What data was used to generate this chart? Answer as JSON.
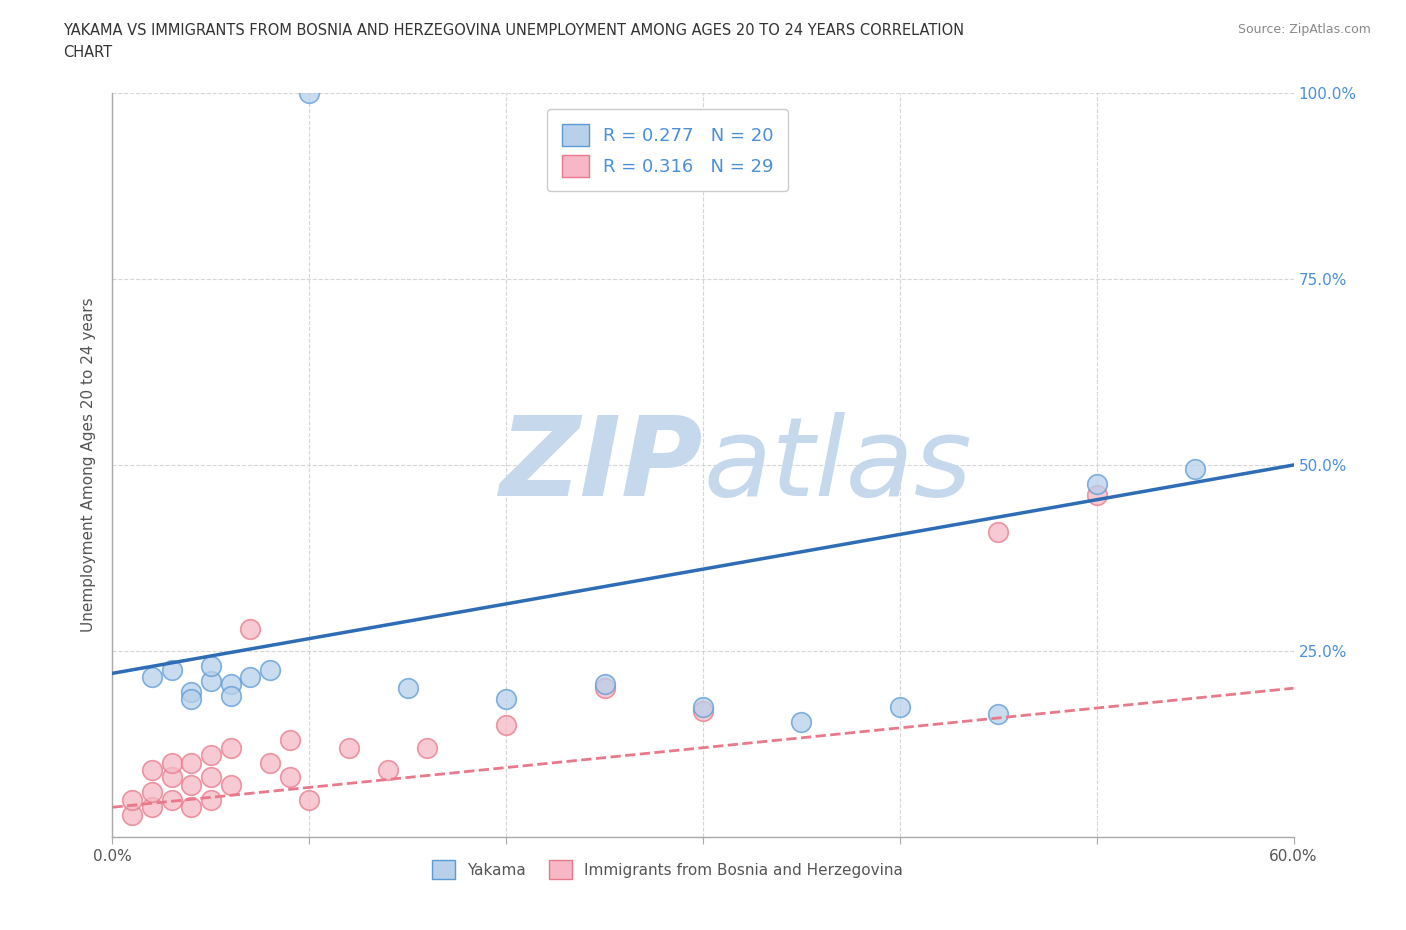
{
  "title_line1": "YAKAMA VS IMMIGRANTS FROM BOSNIA AND HERZEGOVINA UNEMPLOYMENT AMONG AGES 20 TO 24 YEARS CORRELATION",
  "title_line2": "CHART",
  "source_text": "Source: ZipAtlas.com",
  "ylabel": "Unemployment Among Ages 20 to 24 years",
  "xlabel": "",
  "xlim": [
    0.0,
    0.6
  ],
  "ylim": [
    0.0,
    1.0
  ],
  "xticks": [
    0.0,
    0.1,
    0.2,
    0.3,
    0.4,
    0.5,
    0.6
  ],
  "yticks": [
    0.0,
    0.25,
    0.5,
    0.75,
    1.0
  ],
  "legend1_R": "0.277",
  "legend1_N": "20",
  "legend2_R": "0.316",
  "legend2_N": "29",
  "legend_label1": "Yakama",
  "legend_label2": "Immigrants from Bosnia and Herzegovina",
  "blue_scatter_color": "#b8d0ea",
  "blue_edge_color": "#5b9bd5",
  "pink_scatter_color": "#f5b8c4",
  "pink_edge_color": "#e8788a",
  "blue_line_color": "#2e6db5",
  "pink_line_color": "#cc4455",
  "watermark_zip_color": "#c5d8ec",
  "watermark_atlas_color": "#c5d8ec",
  "background_color": "#ffffff",
  "grid_color": "#cccccc",
  "yakama_x": [
    0.1,
    0.02,
    0.03,
    0.04,
    0.05,
    0.04,
    0.06,
    0.05,
    0.07,
    0.06,
    0.08,
    0.15,
    0.2,
    0.25,
    0.3,
    0.45,
    0.5,
    0.55,
    0.4,
    0.35
  ],
  "yakama_y": [
    1.0,
    0.215,
    0.225,
    0.195,
    0.21,
    0.185,
    0.205,
    0.23,
    0.215,
    0.19,
    0.225,
    0.2,
    0.185,
    0.205,
    0.175,
    0.165,
    0.475,
    0.495,
    0.175,
    0.155
  ],
  "bosnia_x": [
    0.01,
    0.01,
    0.02,
    0.02,
    0.02,
    0.03,
    0.03,
    0.03,
    0.04,
    0.04,
    0.04,
    0.05,
    0.05,
    0.05,
    0.06,
    0.06,
    0.07,
    0.08,
    0.09,
    0.09,
    0.1,
    0.12,
    0.14,
    0.16,
    0.2,
    0.25,
    0.3,
    0.45,
    0.5
  ],
  "bosnia_y": [
    0.03,
    0.05,
    0.04,
    0.06,
    0.09,
    0.05,
    0.08,
    0.1,
    0.04,
    0.07,
    0.1,
    0.05,
    0.08,
    0.11,
    0.07,
    0.12,
    0.28,
    0.1,
    0.08,
    0.13,
    0.05,
    0.12,
    0.09,
    0.12,
    0.15,
    0.2,
    0.17,
    0.41,
    0.46
  ],
  "blue_line_x0": 0.0,
  "blue_line_y0": 0.22,
  "blue_line_x1": 0.6,
  "blue_line_y1": 0.5,
  "pink_line_x0": 0.0,
  "pink_line_y0": 0.04,
  "pink_line_x1": 0.6,
  "pink_line_y1": 0.2
}
